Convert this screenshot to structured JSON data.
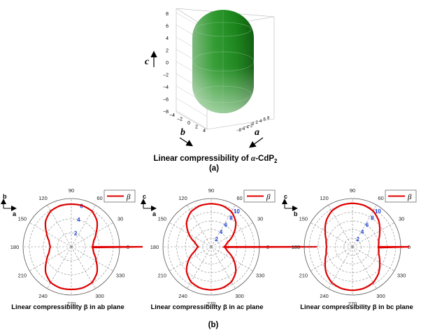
{
  "panel_a": {
    "caption_prefix": "Linear compressibility of ",
    "caption_alpha": "α",
    "caption_compound": "-CdP",
    "caption_sub": "2",
    "label": "(a)",
    "axis_c": "c",
    "axis_b": "b",
    "axis_a": "a",
    "z_ticks": [
      "8",
      "6",
      "4",
      "2",
      "0",
      "−2",
      "−4",
      "−6",
      "−8"
    ],
    "b_ticks": [
      "−4",
      "−2",
      "0",
      "2",
      "4"
    ],
    "a_ticks": [
      "−8",
      "−6",
      "−4",
      "−2",
      "0",
      "2",
      "4",
      "6",
      "8"
    ],
    "surface_color": "#1e8a1e"
  },
  "panel_b_label": "(b)",
  "chart_data": [
    {
      "type": "polar",
      "title": "Linear compressibility β in ab plane",
      "legend": "β",
      "legend_position": "top-right",
      "axis_labels": [
        "b",
        "a"
      ],
      "angle_ticks": [
        "0",
        "30",
        "60",
        "90",
        "120",
        "150",
        "180",
        "210",
        "240",
        "270",
        "300",
        "330"
      ],
      "radial_ticks": [
        "2",
        "4",
        "6"
      ],
      "r_max": 6.9,
      "series": [
        {
          "color": "#e00000",
          "theta_deg": [
            0,
            15,
            30,
            45,
            60,
            75,
            90,
            105,
            120,
            135,
            150,
            165,
            180,
            195,
            210,
            225,
            240,
            255,
            270,
            285,
            300,
            315,
            330,
            345
          ],
          "r": [
            3.0,
            3.3,
            4.1,
            5.2,
            5.9,
            6.1,
            6.1,
            6.1,
            5.9,
            5.2,
            4.1,
            3.3,
            3.0,
            3.3,
            4.1,
            5.2,
            5.9,
            6.1,
            6.1,
            6.1,
            5.9,
            5.2,
            4.1,
            3.3
          ]
        }
      ]
    },
    {
      "type": "polar",
      "title": "Linear compressibility β in ac plane",
      "legend": "β",
      "legend_position": "top-right",
      "axis_labels": [
        "c",
        "a"
      ],
      "angle_ticks": [
        "0",
        "30",
        "60",
        "90",
        "120",
        "150",
        "180",
        "210",
        "240",
        "270",
        "300",
        "330"
      ],
      "radial_ticks": [
        "2",
        "4",
        "6",
        "8",
        "10"
      ],
      "r_max": 11.2,
      "series": [
        {
          "color": "#e00000",
          "theta_deg": [
            0,
            15,
            30,
            45,
            60,
            75,
            90,
            105,
            120,
            135,
            150,
            165,
            180,
            195,
            210,
            225,
            240,
            255,
            270,
            285,
            300,
            315,
            330,
            345
          ],
          "r": [
            3.0,
            3.9,
            6.0,
            8.1,
            9.4,
            9.9,
            10.0,
            9.9,
            9.4,
            8.1,
            6.0,
            3.9,
            3.0,
            3.9,
            6.0,
            8.1,
            9.4,
            9.9,
            10.0,
            9.9,
            9.4,
            8.1,
            6.0,
            3.9
          ]
        }
      ]
    },
    {
      "type": "polar",
      "title": "Linear compressibility β in bc plane",
      "legend": "β",
      "legend_position": "top-right",
      "axis_labels": [
        "c",
        "b"
      ],
      "angle_ticks": [
        "0",
        "30",
        "60",
        "90",
        "120",
        "150",
        "180",
        "210",
        "240",
        "270",
        "300",
        "330"
      ],
      "radial_ticks": [
        "2",
        "4",
        "6",
        "8",
        "10"
      ],
      "r_max": 11.2,
      "series": [
        {
          "color": "#e00000",
          "theta_deg": [
            0,
            15,
            30,
            45,
            60,
            75,
            90,
            105,
            120,
            135,
            150,
            165,
            180,
            195,
            210,
            225,
            240,
            255,
            270,
            285,
            300,
            315,
            330,
            345
          ],
          "r": [
            6.0,
            6.3,
            7.3,
            8.6,
            9.6,
            10.0,
            10.1,
            10.0,
            9.6,
            8.6,
            7.3,
            6.3,
            6.0,
            6.3,
            7.3,
            8.6,
            9.6,
            10.0,
            10.1,
            10.0,
            9.6,
            8.6,
            7.3,
            6.3
          ]
        }
      ]
    }
  ]
}
